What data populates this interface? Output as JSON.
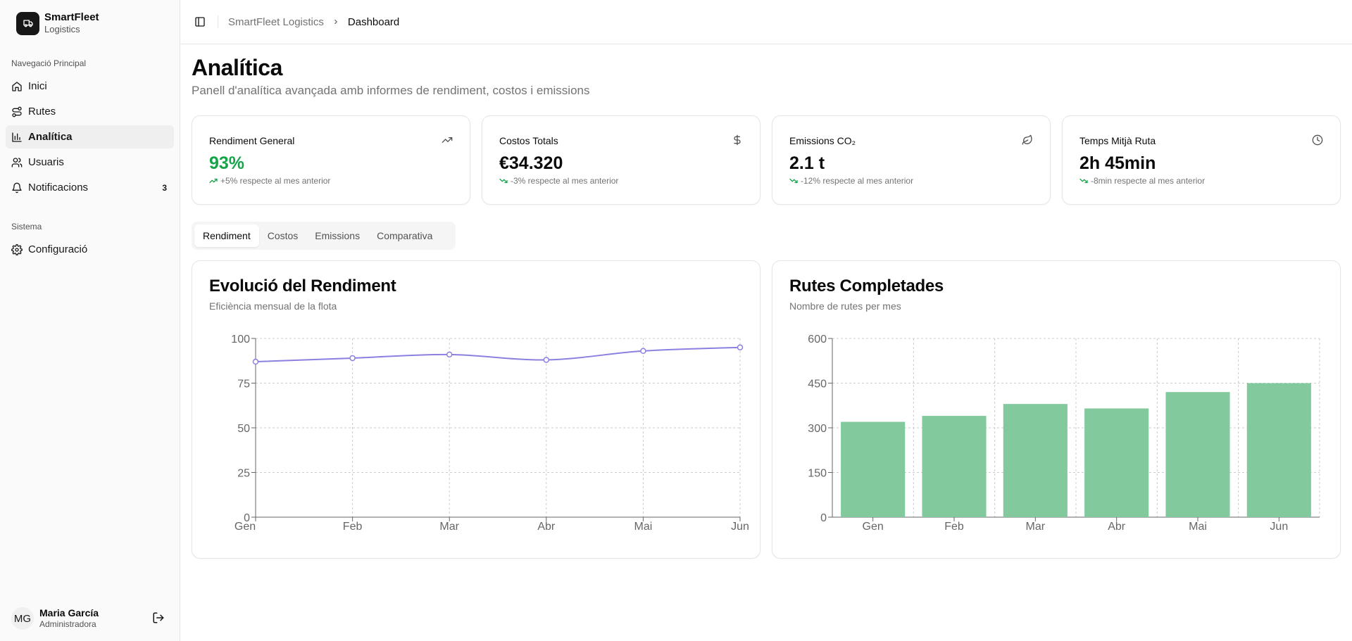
{
  "brand": {
    "name": "SmartFleet",
    "subtitle": "Logistics"
  },
  "sidebar": {
    "main_label": "Navegació Principal",
    "items": [
      {
        "label": "Inici",
        "icon": "home-icon"
      },
      {
        "label": "Rutes",
        "icon": "route-icon"
      },
      {
        "label": "Analítica",
        "icon": "bar-chart-icon",
        "active": true
      },
      {
        "label": "Usuaris",
        "icon": "users-icon"
      },
      {
        "label": "Notificacions",
        "icon": "bell-icon",
        "badge": "3"
      }
    ],
    "system_label": "Sistema",
    "system_items": [
      {
        "label": "Configuració",
        "icon": "gear-icon"
      }
    ]
  },
  "user": {
    "initials": "MG",
    "name": "Maria García",
    "role": "Administradora"
  },
  "header": {
    "breadcrumb_root": "SmartFleet Logistics",
    "breadcrumb_current": "Dashboard"
  },
  "page": {
    "title": "Analítica",
    "subtitle": "Panell d'analítica avançada amb informes de rendiment, costos i emissions"
  },
  "stats": [
    {
      "label": "Rendiment General",
      "value": "93%",
      "change": "+5% respecte al mes anterior",
      "icon": "trending-up-icon",
      "trend": "up"
    },
    {
      "label": "Costos Totals",
      "value": "€34.320",
      "change": "-3% respecte al mes anterior",
      "icon": "dollar-icon",
      "trend": "down"
    },
    {
      "label": "Emissions CO₂",
      "value": "2.1 t",
      "change": "-12% respecte al mes anterior",
      "icon": "leaf-icon",
      "trend": "down"
    },
    {
      "label": "Temps Mitjà Ruta",
      "value": "2h 45min",
      "change": "-8min respecte al mes anterior",
      "icon": "clock-icon",
      "trend": "down"
    }
  ],
  "tabs": [
    "Rendiment",
    "Costos",
    "Emissions",
    "Comparativa"
  ],
  "active_tab": "Rendiment",
  "colors": {
    "line": "#8b80e0",
    "bar": "#82ca9d",
    "positive": "#16a34a"
  },
  "charts": {
    "left": {
      "title": "Evolució del Rendiment",
      "subtitle": "Eficiència mensual de la flota"
    },
    "right": {
      "title": "Rutes Completades",
      "subtitle": "Nombre de rutes per mes"
    }
  },
  "chart_data": [
    {
      "type": "line",
      "title": "Evolució del Rendiment",
      "subtitle": "Eficiència mensual de la flota",
      "categories": [
        "Gen",
        "Feb",
        "Mar",
        "Abr",
        "Mai",
        "Jun"
      ],
      "values": [
        87,
        89,
        91,
        88,
        93,
        95
      ],
      "ylim": [
        0,
        100
      ],
      "yticks": [
        0,
        25,
        50,
        75,
        100
      ],
      "grid": true
    },
    {
      "type": "bar",
      "title": "Rutes Completades",
      "subtitle": "Nombre de rutes per mes",
      "categories": [
        "Gen",
        "Feb",
        "Mar",
        "Abr",
        "Mai",
        "Jun"
      ],
      "values": [
        320,
        340,
        380,
        365,
        420,
        450
      ],
      "ylim": [
        0,
        600
      ],
      "yticks": [
        0,
        150,
        300,
        450,
        600
      ],
      "grid": true
    }
  ]
}
